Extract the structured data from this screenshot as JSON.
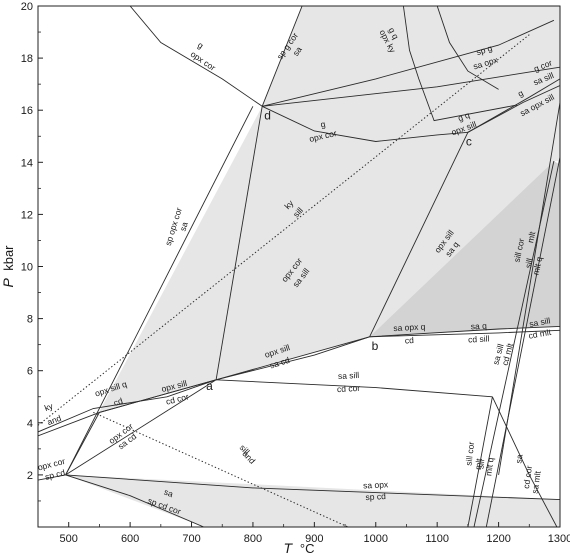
{
  "chart_data": {
    "type": "diagram",
    "title": "",
    "xlabel": "T",
    "xunit": "°C",
    "ylabel": "P",
    "yunit": "kbar",
    "xlim": [
      450,
      1300
    ],
    "ylim": [
      0,
      20
    ],
    "xticks": [
      500,
      600,
      700,
      800,
      900,
      1000,
      1100,
      1200,
      1300
    ],
    "yticks": [
      2,
      4,
      6,
      8,
      10,
      12,
      14,
      16,
      18,
      20
    ],
    "grid": false,
    "colors": {
      "light_field": "#e6e6e6",
      "dark_field": "#d3d3d3",
      "line": "#2b2b2b"
    },
    "fields": [
      {
        "name": "light-field",
        "shade": "light",
        "points": [
          [
            495,
            2
          ],
          [
            550,
            4.4
          ],
          [
            740,
            5.65
          ],
          [
            990,
            7.3
          ],
          [
            1290,
            14.05
          ],
          [
            1300,
            14.05
          ],
          [
            1300,
            20
          ],
          [
            1147,
            20
          ],
          [
            815,
            16.15
          ],
          [
            495,
            2
          ]
        ]
      },
      {
        "name": "light-field-lower",
        "shade": "light",
        "points": [
          [
            495,
            2
          ],
          [
            1300,
            1.05
          ],
          [
            1300,
            0
          ],
          [
            720,
            0
          ],
          [
            495,
            2
          ]
        ]
      },
      {
        "name": "light-field-upper",
        "shade": "light",
        "points": [
          [
            815,
            16.15
          ],
          [
            880,
            20
          ],
          [
            1300,
            20
          ],
          [
            1300,
            17.2
          ],
          [
            815,
            16.15
          ]
        ]
      },
      {
        "name": "dark-field",
        "shade": "dark",
        "points": [
          [
            990,
            7.3
          ],
          [
            1290,
            14.05
          ],
          [
            1300,
            13.9
          ],
          [
            1300,
            7.7
          ],
          [
            990,
            7.3
          ]
        ]
      }
    ],
    "reactions": [
      {
        "name": "reaction-a-d",
        "points": [
          [
            740,
            5.65
          ],
          [
            815,
            16.15
          ]
        ]
      },
      {
        "name": "reaction-d-top",
        "points": [
          [
            815,
            16.15
          ],
          [
            880,
            20
          ]
        ]
      },
      {
        "name": "reaction-d-left",
        "points": [
          [
            815,
            16.15
          ],
          [
            750,
            17.2
          ],
          [
            650,
            18.6
          ],
          [
            600,
            20
          ]
        ]
      },
      {
        "name": "reaction-d-c",
        "points": [
          [
            815,
            16.15
          ],
          [
            900,
            15.2
          ],
          [
            1000,
            14.8
          ],
          [
            1100,
            15.05
          ],
          [
            1150,
            15.15
          ]
        ]
      },
      {
        "name": "reaction-d-upper",
        "points": [
          [
            815,
            16.15
          ],
          [
            1000,
            17.2
          ],
          [
            1200,
            18.5
          ],
          [
            1290,
            19.45
          ]
        ]
      },
      {
        "name": "reaction-d-c-upper",
        "points": [
          [
            815,
            16.15
          ],
          [
            1100,
            16.9
          ],
          [
            1260,
            17.5
          ],
          [
            1300,
            17.65
          ]
        ]
      },
      {
        "name": "reaction-c-right",
        "points": [
          [
            1150,
            15.15
          ],
          [
            1240,
            16.3
          ],
          [
            1300,
            16.95
          ]
        ]
      },
      {
        "name": "reaction-c-right2",
        "points": [
          [
            1150,
            15.15
          ],
          [
            1250,
            16.5
          ],
          [
            1300,
            17.2
          ]
        ]
      },
      {
        "name": "reaction-b-c",
        "points": [
          [
            990,
            7.3
          ],
          [
            1150,
            15.15
          ]
        ]
      },
      {
        "name": "reaction-top-curve",
        "points": [
          [
            1045,
            20
          ],
          [
            1055,
            18.3
          ],
          [
            1070,
            17.2
          ],
          [
            1095,
            15.6
          ],
          [
            1230,
            16.2
          ]
        ]
      },
      {
        "name": "reaction-top-curve2",
        "points": [
          [
            1100,
            20
          ],
          [
            1120,
            18.6
          ],
          [
            1150,
            17.5
          ],
          [
            1200,
            16.8
          ]
        ]
      },
      {
        "name": "reaction-low-left",
        "points": [
          [
            450,
            3.5
          ],
          [
            550,
            4.4
          ],
          [
            740,
            5.65
          ]
        ]
      },
      {
        "name": "reaction-low-left2",
        "points": [
          [
            450,
            3.65
          ],
          [
            540,
            4.55
          ],
          [
            660,
            5.0
          ],
          [
            740,
            5.65
          ]
        ]
      },
      {
        "name": "reaction-a-b",
        "points": [
          [
            740,
            5.65
          ],
          [
            990,
            7.3
          ]
        ]
      },
      {
        "name": "reaction-a-b2",
        "points": [
          [
            740,
            5.65
          ],
          [
            900,
            6.6
          ],
          [
            990,
            7.3
          ]
        ]
      },
      {
        "name": "reaction-b-right",
        "points": [
          [
            990,
            7.3
          ],
          [
            1200,
            7.6
          ],
          [
            1300,
            7.7
          ]
        ]
      },
      {
        "name": "reaction-b-right2",
        "points": [
          [
            990,
            7.3
          ],
          [
            1200,
            7.45
          ],
          [
            1300,
            7.55
          ]
        ]
      },
      {
        "name": "reaction-a-e",
        "points": [
          [
            740,
            5.65
          ],
          [
            1000,
            5.35
          ],
          [
            1190,
            5.0
          ]
        ]
      },
      {
        "name": "reaction-e-right",
        "points": [
          [
            1190,
            5.0
          ],
          [
            1250,
            2.0
          ],
          [
            1295,
            0
          ]
        ]
      },
      {
        "name": "reaction-e-left",
        "points": [
          [
            1190,
            5.0
          ],
          [
            1150,
            0
          ]
        ]
      },
      {
        "name": "reaction-steep-1",
        "points": [
          [
            1160,
            0
          ],
          [
            1290,
            14.05
          ]
        ]
      },
      {
        "name": "reaction-steep-2",
        "points": [
          [
            1180,
            0
          ],
          [
            1300,
            14.2
          ]
        ]
      },
      {
        "name": "reaction-steep-3",
        "points": [
          [
            1200,
            2
          ],
          [
            1300,
            16.3
          ]
        ]
      },
      {
        "name": "reaction-f-right",
        "points": [
          [
            495,
            2
          ],
          [
            800,
            1.5
          ],
          [
            1300,
            1.05
          ]
        ]
      },
      {
        "name": "reaction-f-up",
        "points": [
          [
            495,
            2
          ],
          [
            550,
            4.4
          ],
          [
            740,
            5.65
          ]
        ]
      },
      {
        "name": "reaction-f-ad",
        "points": [
          [
            495,
            2
          ],
          [
            740,
            5.65
          ]
        ]
      },
      {
        "name": "reaction-f-bottom",
        "points": [
          [
            495,
            2
          ],
          [
            600,
            1.2
          ],
          [
            720,
            0
          ]
        ]
      },
      {
        "name": "reaction-f-leftmost",
        "points": [
          [
            450,
            1.8
          ],
          [
            495,
            2
          ]
        ]
      },
      {
        "name": "reaction-f-ad-line",
        "points": [
          [
            495,
            2
          ],
          [
            800,
            16.15
          ]
        ]
      }
    ],
    "dotted_lines": [
      {
        "name": "ky-sill-boundary",
        "points": [
          [
            450,
            3.9
          ],
          [
            1250,
            18.9
          ]
        ]
      },
      {
        "name": "sill-and-boundary",
        "points": [
          [
            540,
            4.4
          ],
          [
            955,
            0
          ]
        ]
      }
    ],
    "points": [
      {
        "name": "point-a",
        "label": "a",
        "x": 740,
        "y": 5.65
      },
      {
        "name": "point-b",
        "label": "b",
        "x": 990,
        "y": 7.3
      },
      {
        "name": "point-c",
        "label": "c",
        "x": 1150,
        "y": 15.15
      },
      {
        "name": "point-d",
        "label": "d",
        "x": 815,
        "y": 16.15
      }
    ],
    "reaction_labels": [
      {
        "text": "g",
        "x": 712,
        "y": 18.4,
        "angle": 34
      },
      {
        "text": "opx cor",
        "x": 716,
        "y": 17.8,
        "angle": 34
      },
      {
        "text": "sp g cor",
        "x": 860,
        "y": 18.4,
        "angle": -55
      },
      {
        "text": "sa",
        "x": 876,
        "y": 18.2,
        "angle": -55
      },
      {
        "text": "g q",
        "x": 1025,
        "y": 18.9,
        "angle": 62
      },
      {
        "text": "opx ky",
        "x": 1015,
        "y": 18.6,
        "angle": 62
      },
      {
        "text": "sp g",
        "x": 1178,
        "y": 18.2,
        "angle": -17
      },
      {
        "text": "sa opx",
        "x": 1180,
        "y": 17.7,
        "angle": -17
      },
      {
        "text": "g cor",
        "x": 1274,
        "y": 17.6,
        "angle": -22
      },
      {
        "text": "sa sill",
        "x": 1275,
        "y": 17.1,
        "angle": -22
      },
      {
        "text": "g",
        "x": 1238,
        "y": 16.55,
        "angle": -28
      },
      {
        "text": "sa opx sill",
        "x": 1265,
        "y": 16.1,
        "angle": -28
      },
      {
        "text": "g q",
        "x": 1145,
        "y": 15.65,
        "angle": -20
      },
      {
        "text": "opx sill",
        "x": 1145,
        "y": 15.2,
        "angle": -20
      },
      {
        "text": "g",
        "x": 915,
        "y": 15.35,
        "angle": -13
      },
      {
        "text": "opx cor",
        "x": 915,
        "y": 14.9,
        "angle": -13
      },
      {
        "text": "sp opx cor",
        "x": 675,
        "y": 11.5,
        "angle": -73
      },
      {
        "text": "sa",
        "x": 692,
        "y": 11.5,
        "angle": -73
      },
      {
        "text": "ky",
        "x": 862,
        "y": 12.3,
        "angle": -47
      },
      {
        "text": "sill",
        "x": 877,
        "y": 12.0,
        "angle": -47
      },
      {
        "text": "opx cor",
        "x": 867,
        "y": 9.8,
        "angle": -52
      },
      {
        "text": "sa sill",
        "x": 882,
        "y": 9.5,
        "angle": -52
      },
      {
        "text": "opx sill",
        "x": 1115,
        "y": 10.9,
        "angle": -53
      },
      {
        "text": "sa q",
        "x": 1128,
        "y": 10.6,
        "angle": -53
      },
      {
        "text": "sill cor",
        "x": 1238,
        "y": 10.6,
        "angle": -78
      },
      {
        "text": "mlt",
        "x": 1258,
        "y": 11.1,
        "angle": -78
      },
      {
        "text": "sill",
        "x": 1254,
        "y": 10.1,
        "angle": -78
      },
      {
        "text": "mlt q",
        "x": 1268,
        "y": 10.0,
        "angle": -78
      },
      {
        "text": "sa opx q",
        "x": 1055,
        "y": 7.55,
        "angle": -3
      },
      {
        "text": "cd",
        "x": 1055,
        "y": 7.05,
        "angle": -3
      },
      {
        "text": "sa q",
        "x": 1168,
        "y": 7.6,
        "angle": -3
      },
      {
        "text": "cd sill",
        "x": 1168,
        "y": 7.1,
        "angle": -3
      },
      {
        "text": "sa sill",
        "x": 1268,
        "y": 7.75,
        "angle": -10
      },
      {
        "text": "cd mlt",
        "x": 1268,
        "y": 7.3,
        "angle": -10
      },
      {
        "text": "sa sill",
        "x": 1204,
        "y": 6.6,
        "angle": -75
      },
      {
        "text": "cd mlt",
        "x": 1219,
        "y": 6.6,
        "angle": -75
      },
      {
        "text": "opx sill",
        "x": 841,
        "y": 6.65,
        "angle": -18
      },
      {
        "text": "sa cd",
        "x": 845,
        "y": 6.2,
        "angle": -18
      },
      {
        "text": "sa sill",
        "x": 956,
        "y": 5.7,
        "angle": -3
      },
      {
        "text": "cd cor",
        "x": 956,
        "y": 5.2,
        "angle": -3
      },
      {
        "text": "opx sill q",
        "x": 570,
        "y": 5.2,
        "angle": -18
      },
      {
        "text": "cd",
        "x": 582,
        "y": 4.7,
        "angle": -18
      },
      {
        "text": "opx sill",
        "x": 673,
        "y": 5.3,
        "angle": -14
      },
      {
        "text": "cd cor",
        "x": 678,
        "y": 4.8,
        "angle": -14
      },
      {
        "text": "ky",
        "x": 469,
        "y": 4.5,
        "angle": -20
      },
      {
        "text": "and",
        "x": 478,
        "y": 4.0,
        "angle": -20
      },
      {
        "text": "opx cor",
        "x": 588,
        "y": 3.5,
        "angle": -37
      },
      {
        "text": "sa cd",
        "x": 598,
        "y": 3.2,
        "angle": -37
      },
      {
        "text": "opx cor",
        "x": 473,
        "y": 2.3,
        "angle": -14
      },
      {
        "text": "sp cd",
        "x": 479,
        "y": 1.9,
        "angle": -14
      },
      {
        "text": "sill",
        "x": 783,
        "y": 2.9,
        "angle": 47
      },
      {
        "text": "and",
        "x": 790,
        "y": 2.6,
        "angle": 47
      },
      {
        "text": "sa opx",
        "x": 1000,
        "y": 1.5,
        "angle": -3
      },
      {
        "text": "sp cd",
        "x": 1000,
        "y": 1.05,
        "angle": -3
      },
      {
        "text": "sa",
        "x": 661,
        "y": 1.2,
        "angle": 20
      },
      {
        "text": "sp cd cor",
        "x": 654,
        "y": 0.7,
        "angle": 20
      },
      {
        "text": "sill cor",
        "x": 1158,
        "y": 2.8,
        "angle": -83
      },
      {
        "text": "mlt",
        "x": 1172,
        "y": 2.4,
        "angle": -83
      },
      {
        "text": "sill",
        "x": 1176,
        "y": 2.4,
        "angle": -83
      },
      {
        "text": "mlt q",
        "x": 1190,
        "y": 2.3,
        "angle": -83
      },
      {
        "text": "sa",
        "x": 1238,
        "y": 2.6,
        "angle": -82
      },
      {
        "text": "cd cor",
        "x": 1252,
        "y": 1.9,
        "angle": -82
      },
      {
        "text": "sa mlt",
        "x": 1266,
        "y": 1.7,
        "angle": -82
      }
    ]
  }
}
